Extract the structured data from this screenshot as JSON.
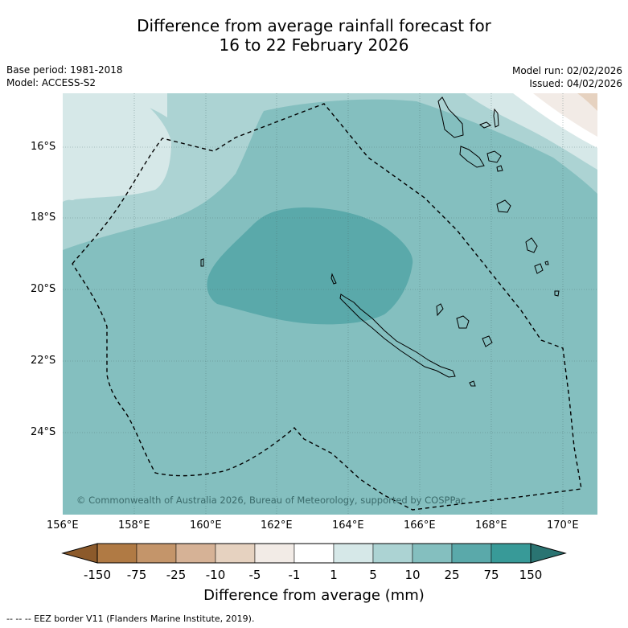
{
  "title": {
    "line1": "Difference from average rainfall forecast for",
    "line2": "16 to 22 February 2026"
  },
  "meta": {
    "base_period": "Base period: 1981-2018",
    "model": "Model: ACCESS-S2",
    "model_run": "Model run: 02/02/2026",
    "issued": "Issued: 04/02/2026"
  },
  "map": {
    "lon_ticks": [
      "156°E",
      "158°E",
      "160°E",
      "162°E",
      "164°E",
      "166°E",
      "168°E",
      "170°E"
    ],
    "lat_ticks": [
      "16°S",
      "18°S",
      "20°S",
      "22°S",
      "24°S"
    ],
    "copyright": "© Commonwealth of Australia 2026, Bureau of Meteorology, supported by COSPPac"
  },
  "colorbar": {
    "labels": [
      "-150",
      "-75",
      "-25",
      "-10",
      "-5",
      "-1",
      "1",
      "5",
      "10",
      "25",
      "75",
      "150"
    ],
    "colors": [
      "#8c5a2b",
      "#b07a44",
      "#c4956a",
      "#d6b296",
      "#e6d2c0",
      "#f2ebe6",
      "#ffffff",
      "#d6e8e8",
      "#acd3d3",
      "#84bfbf",
      "#5aa9aa",
      "#389a98",
      "#2a7472"
    ],
    "xlabel": "Difference from average (mm)"
  },
  "footnote": "--  --  -- EEZ border V11 (Flanders Marine Institute, 2019)."
}
